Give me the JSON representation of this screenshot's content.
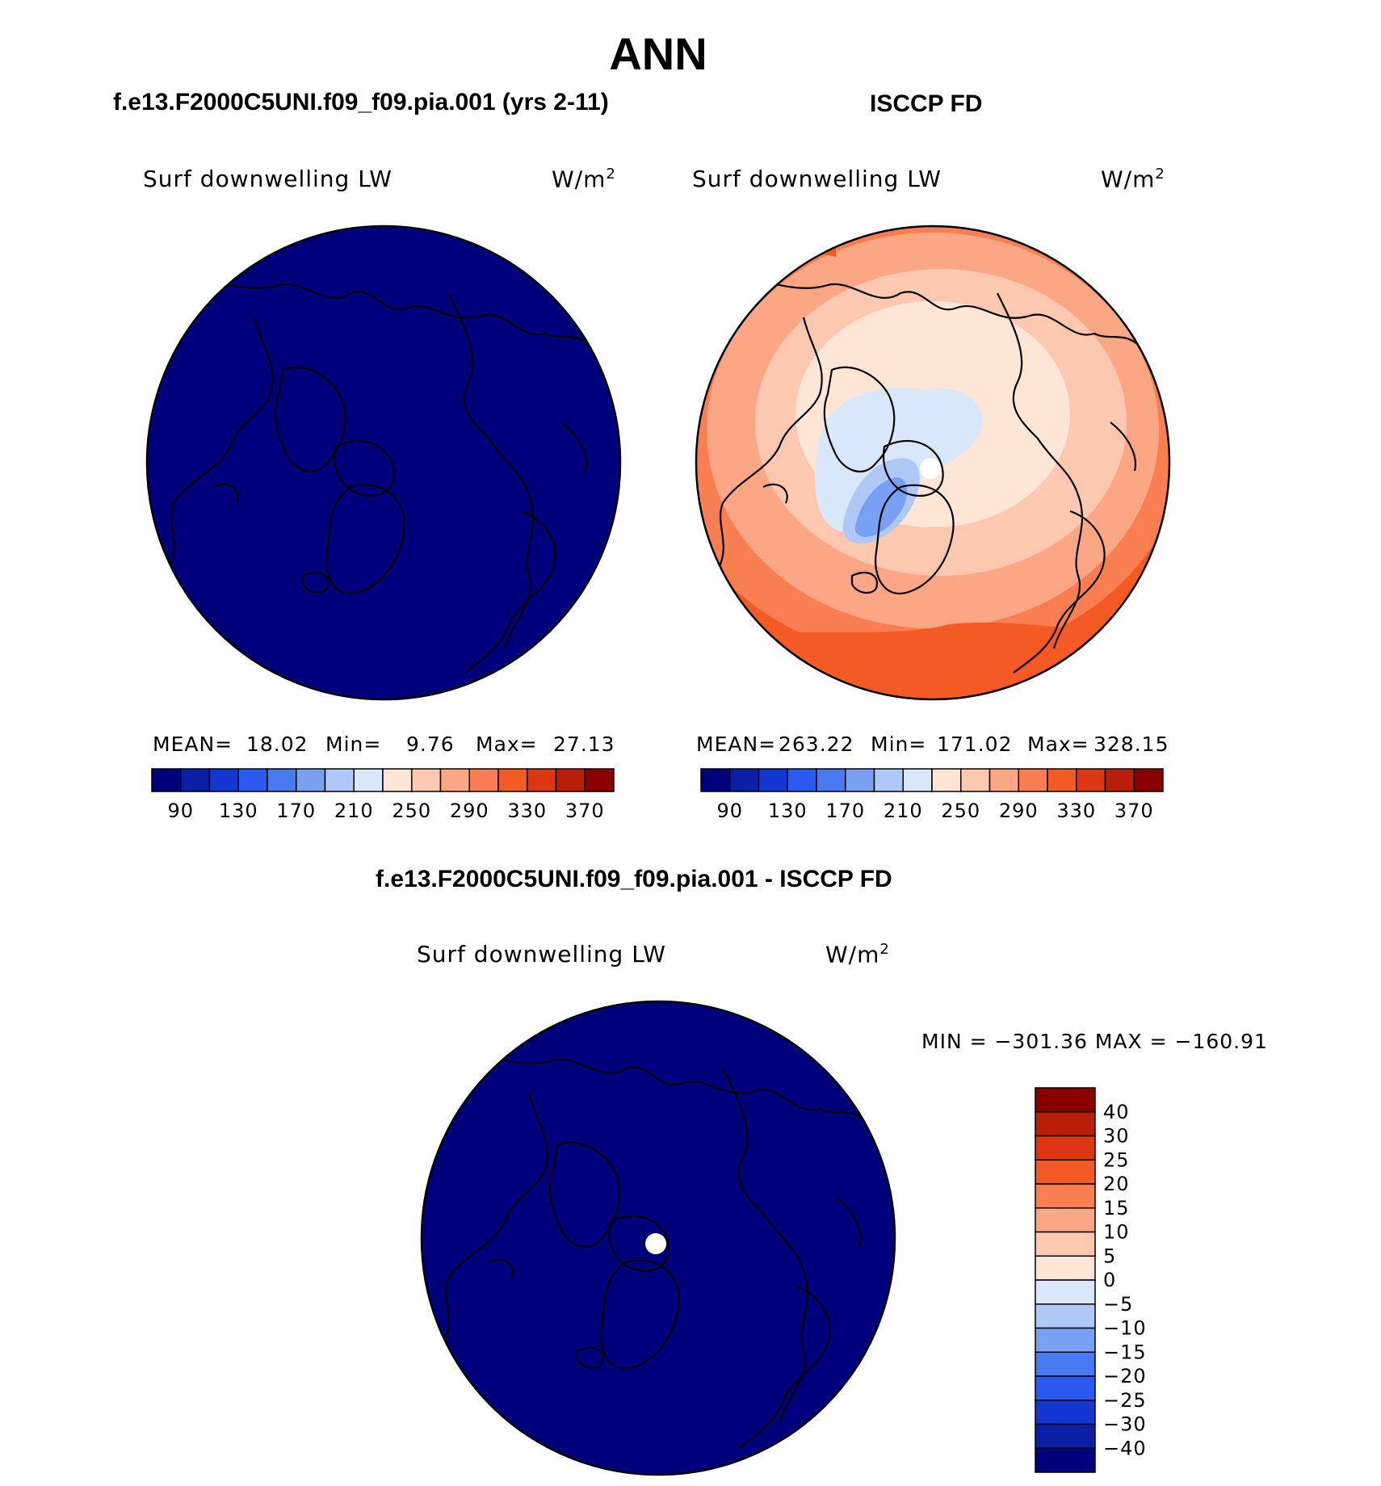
{
  "figure": {
    "title": "ANN",
    "panels": [
      {
        "subtitle": "f.e13.F2000C5UNI.f09_f09.pia.001 (yrs 2-11)",
        "variable": "Surf downwelling LW",
        "units": "W/m",
        "units_sup": "2",
        "mean_label": "MEAN=",
        "mean": "18.02",
        "min_label": "Min=",
        "min": "9.76",
        "max_label": "Max=",
        "max": "27.13"
      },
      {
        "subtitle": "ISCCP FD",
        "variable": "Surf downwelling LW",
        "units": "W/m",
        "units_sup": "2",
        "mean_label": "MEAN=",
        "mean": "263.22",
        "min_label": "Min=",
        "min": "171.02",
        "max_label": "Max=",
        "max": "328.15"
      },
      {
        "subtitle": "f.e13.F2000C5UNI.f09_f09.pia.001 - ISCCP FD",
        "variable": "Surf downwelling LW",
        "units": "W/m",
        "units_sup": "2",
        "minmax": "MIN = −301.36 MAX = −160.91"
      }
    ]
  },
  "chart_data": [
    {
      "type": "heatmap",
      "projection": "north-polar-stereographic",
      "title": "f.e13.F2000C5UNI.f09_f09.pia.001 (yrs 2-11)",
      "variable": "Surf downwelling LW",
      "units": "W/m^2",
      "stats": {
        "mean": 18.02,
        "min": 9.76,
        "max": 27.13
      },
      "contour_levels": [
        90,
        110,
        130,
        150,
        170,
        190,
        210,
        230,
        250,
        270,
        290,
        310,
        330,
        350,
        370
      ],
      "tick_labels": [
        "90",
        "130",
        "170",
        "210",
        "250",
        "290",
        "330",
        "370"
      ],
      "colors": [
        "#00007c",
        "#0a1ea6",
        "#1437d2",
        "#2a5af0",
        "#4a7af2",
        "#7aa0f4",
        "#b0c8f6",
        "#d8e8fa",
        "#fde6d6",
        "#fcc8b0",
        "#fba684",
        "#f97f52",
        "#f35a24",
        "#dc3612",
        "#b81e08",
        "#8a0000"
      ]
    },
    {
      "type": "heatmap",
      "projection": "north-polar-stereographic",
      "title": "ISCCP FD",
      "variable": "Surf downwelling LW",
      "units": "W/m^2",
      "stats": {
        "mean": 263.22,
        "min": 171.02,
        "max": 328.15
      },
      "contour_levels": [
        90,
        110,
        130,
        150,
        170,
        190,
        210,
        230,
        250,
        270,
        290,
        310,
        330,
        350,
        370
      ],
      "tick_labels": [
        "90",
        "130",
        "170",
        "210",
        "250",
        "290",
        "330",
        "370"
      ],
      "colors": [
        "#00007c",
        "#0a1ea6",
        "#1437d2",
        "#2a5af0",
        "#4a7af2",
        "#7aa0f4",
        "#b0c8f6",
        "#d8e8fa",
        "#fde6d6",
        "#fcc8b0",
        "#fba684",
        "#f97f52",
        "#f35a24",
        "#dc3612",
        "#b81e08",
        "#8a0000"
      ]
    },
    {
      "type": "heatmap",
      "projection": "north-polar-stereographic",
      "title": "f.e13.F2000C5UNI.f09_f09.pia.001 - ISCCP FD",
      "variable": "Surf downwelling LW",
      "units": "W/m^2",
      "stats": {
        "min": -301.36,
        "max": -160.91
      },
      "contour_levels": [
        -40,
        -30,
        -25,
        -20,
        -15,
        -10,
        -5,
        0,
        5,
        10,
        15,
        20,
        25,
        30,
        40
      ],
      "tick_labels": [
        "40",
        "30",
        "25",
        "20",
        "15",
        "10",
        "5",
        "0",
        "−5",
        "−10",
        "−15",
        "−20",
        "−25",
        "−30",
        "−40"
      ],
      "colors": [
        "#8a0000",
        "#b81e08",
        "#dc3612",
        "#f35a24",
        "#f97f52",
        "#fba684",
        "#fcc8b0",
        "#fde6d6",
        "#d8e8fa",
        "#b0c8f6",
        "#7aa0f4",
        "#4a7af2",
        "#2a5af0",
        "#1437d2",
        "#0a1ea6",
        "#00007c"
      ]
    }
  ]
}
